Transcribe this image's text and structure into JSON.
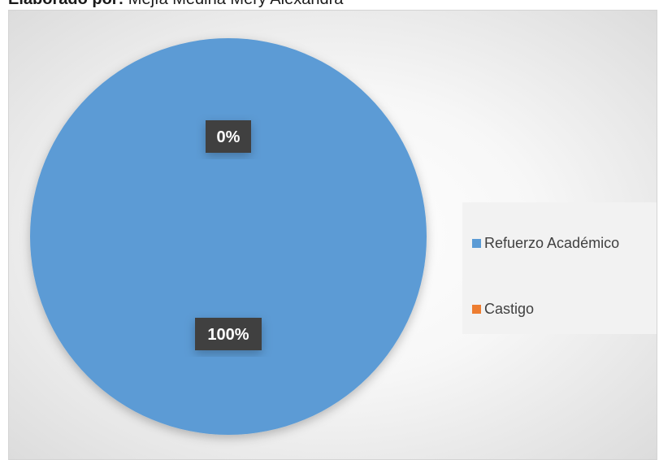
{
  "header": {
    "bold_label": "Elaborado por:",
    "author": "Mejía Medina Mery Alexandra"
  },
  "chart_data": {
    "type": "pie",
    "title": "",
    "categories": [
      "Refuerzo Académico",
      "Castigo"
    ],
    "values": [
      100,
      0
    ],
    "data_labels": [
      "100%",
      "0%"
    ],
    "colors": [
      "#5b9bd5",
      "#ed7d31"
    ],
    "legend_position": "right",
    "label_box_color": "#404040",
    "label_text_color": "#ffffff"
  }
}
